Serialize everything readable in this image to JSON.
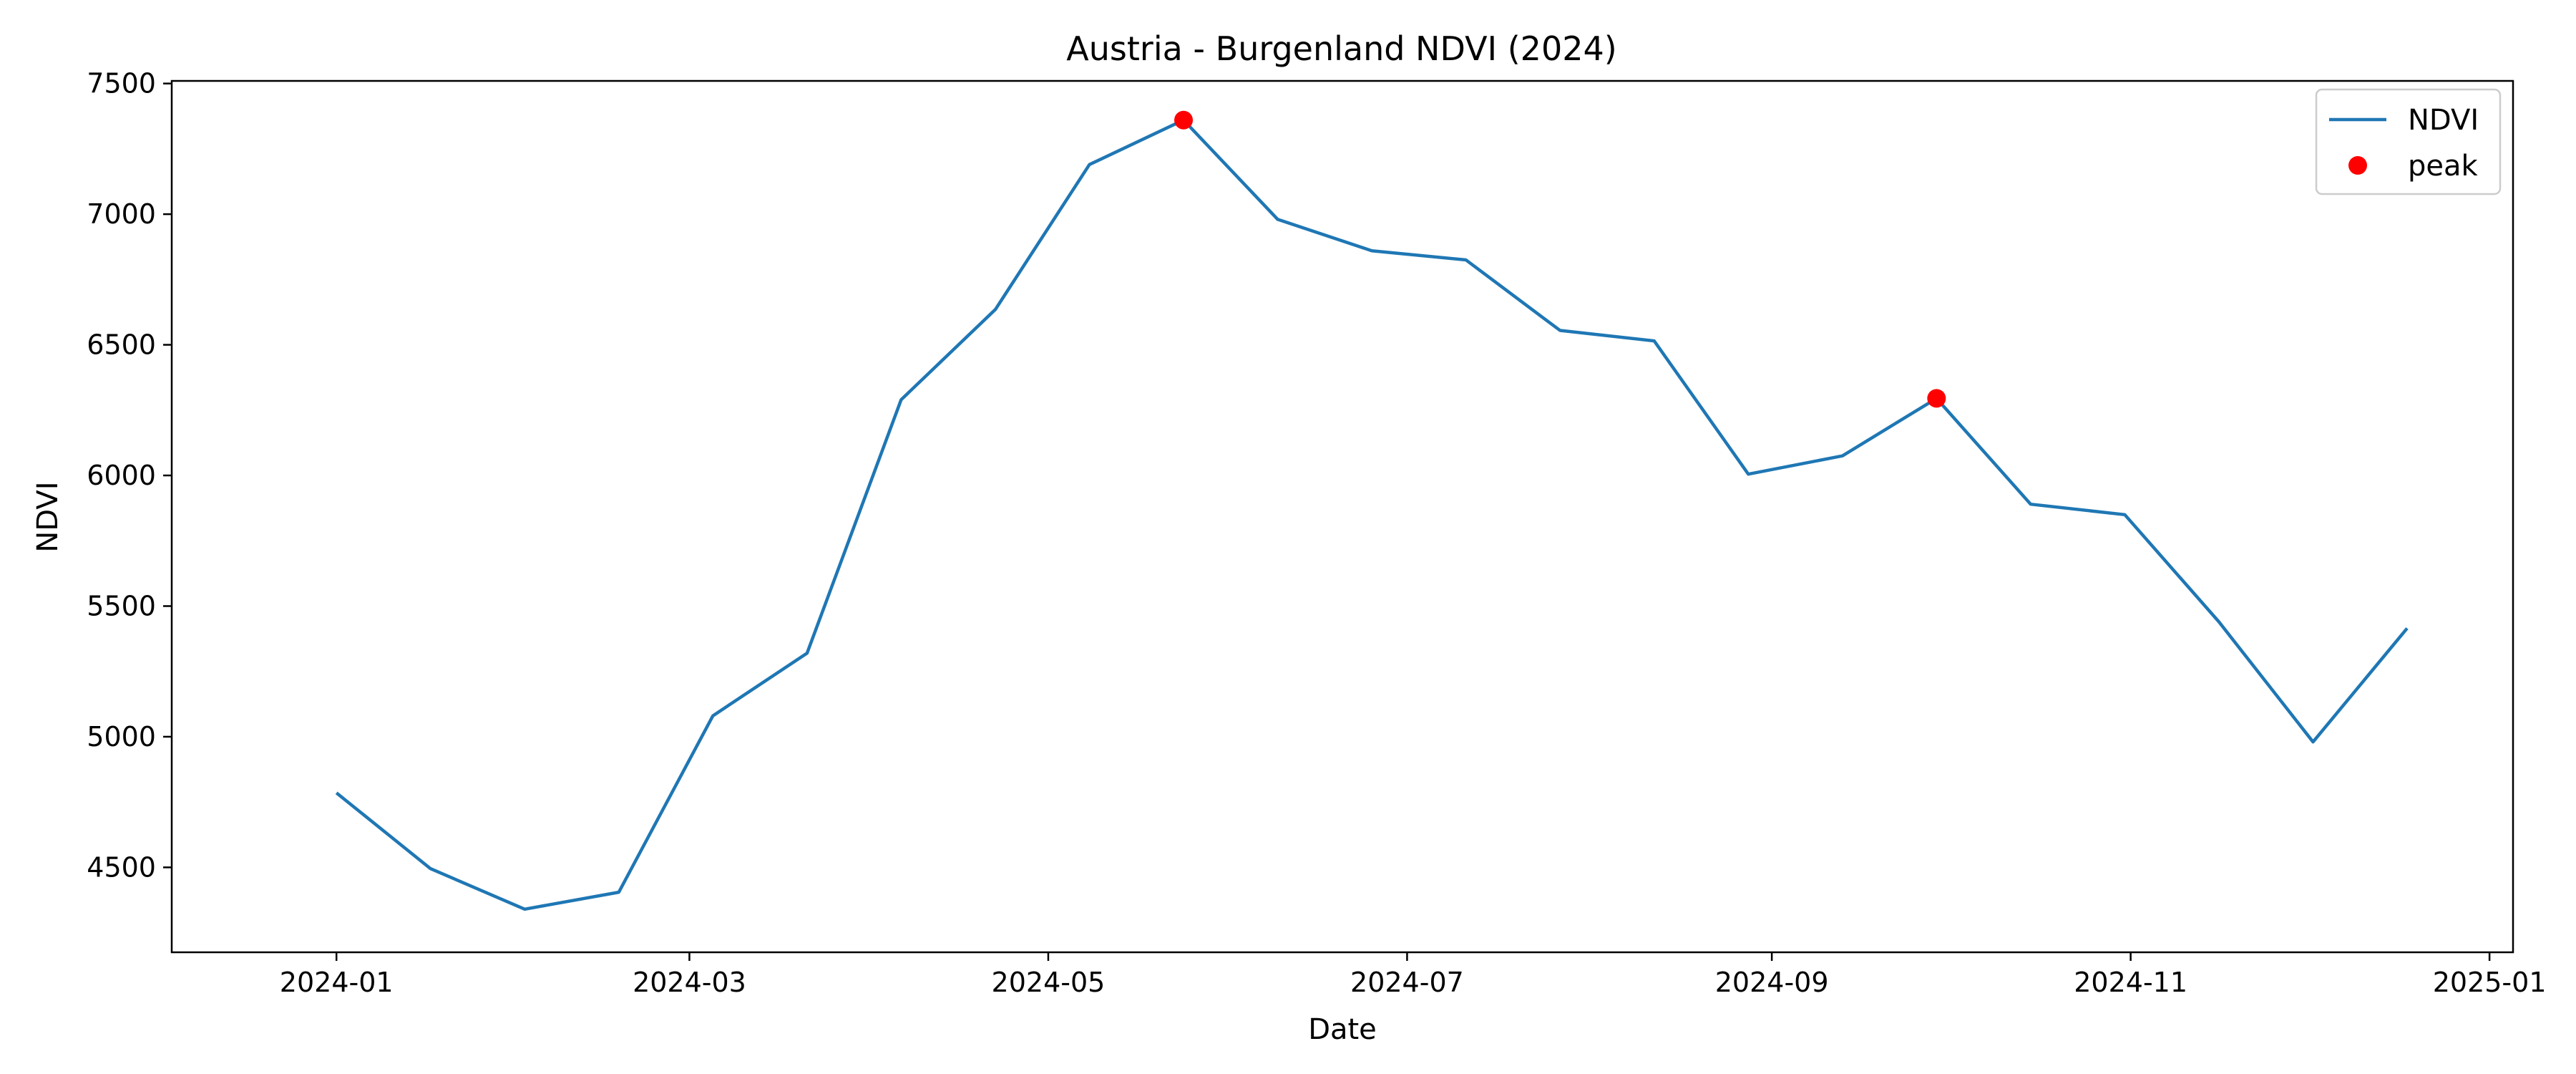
{
  "chart_data": {
    "type": "line",
    "title": "Austria - Burgenland NDVI (2024)",
    "xlabel": "Date",
    "ylabel": "NDVI",
    "x": [
      "2024-01-01",
      "2024-01-17",
      "2024-02-02",
      "2024-02-18",
      "2024-03-05",
      "2024-03-21",
      "2024-04-06",
      "2024-04-22",
      "2024-05-08",
      "2024-05-24",
      "2024-06-09",
      "2024-06-25",
      "2024-07-11",
      "2024-07-27",
      "2024-08-12",
      "2024-08-28",
      "2024-09-13",
      "2024-09-29",
      "2024-10-15",
      "2024-10-31",
      "2024-11-16",
      "2024-12-02",
      "2024-12-18"
    ],
    "series": [
      {
        "name": "NDVI",
        "color": "#1f77b4",
        "values": [
          4785,
          4495,
          4340,
          4405,
          5080,
          5320,
          6290,
          6635,
          7190,
          7360,
          6980,
          6860,
          6825,
          6555,
          6515,
          6005,
          6075,
          6295,
          5890,
          5850,
          5440,
          4980,
          5415
        ]
      }
    ],
    "markers": {
      "name": "peak",
      "color": "#ff0000",
      "points": [
        {
          "x": "2024-05-24",
          "y": 7360
        },
        {
          "x": "2024-09-29",
          "y": 6295
        }
      ]
    },
    "xlim": [
      "2023-12-04",
      "2025-01-05"
    ],
    "ylim": [
      4175,
      7510
    ],
    "yticks": [
      4500,
      5000,
      5500,
      6000,
      6500,
      7000,
      7500
    ],
    "xticks": [
      {
        "date": "2024-01-01",
        "label": "2024-01"
      },
      {
        "date": "2024-03-01",
        "label": "2024-03"
      },
      {
        "date": "2024-05-01",
        "label": "2024-05"
      },
      {
        "date": "2024-07-01",
        "label": "2024-07"
      },
      {
        "date": "2024-09-01",
        "label": "2024-09"
      },
      {
        "date": "2024-11-01",
        "label": "2024-11"
      },
      {
        "date": "2025-01-01",
        "label": "2025-01"
      }
    ],
    "grid": false,
    "legend_position": "top-right"
  }
}
